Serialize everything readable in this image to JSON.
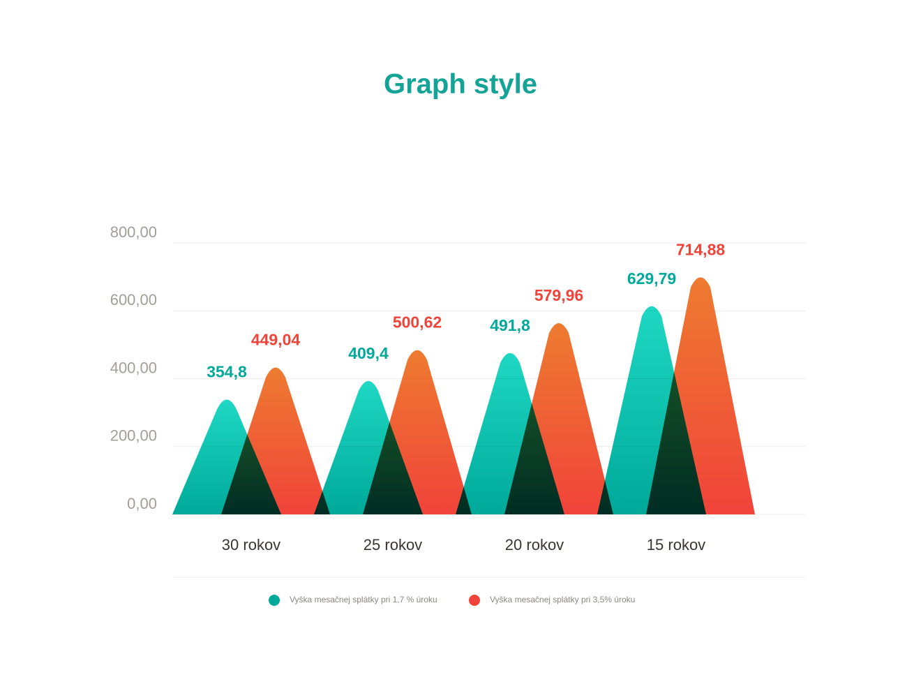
{
  "chart_data": {
    "type": "peak",
    "title": "Graph style",
    "categories": [
      "30 rokov",
      "25 rokov",
      "20 rokov",
      "15 rokov"
    ],
    "series": [
      {
        "name": "Vyška mesačnej splátky pri 1,7 % úroku",
        "color": "#00a99a",
        "color_top": "#1ed8c3",
        "values": [
          354.8,
          409.4,
          491.8,
          629.79
        ],
        "value_labels": [
          "354,8",
          "409,4",
          "491,8",
          "629,79"
        ]
      },
      {
        "name": "Vyška mesačnej splátky pri 3,5% úroku",
        "color": "#f0433a",
        "color_top": "#ee7b30",
        "values": [
          449.04,
          500.62,
          579.96,
          714.88
        ],
        "value_labels": [
          "449,04",
          "500,62",
          "579,96",
          "714,88"
        ]
      }
    ],
    "ylim": [
      0,
      800
    ],
    "yticks": [
      {
        "value": 0,
        "label": "0,00"
      },
      {
        "value": 200,
        "label": "200,00"
      },
      {
        "value": 400,
        "label": "400,00"
      },
      {
        "value": 600,
        "label": "600,00"
      },
      {
        "value": 800,
        "label": "800,00"
      }
    ],
    "grid": true
  }
}
